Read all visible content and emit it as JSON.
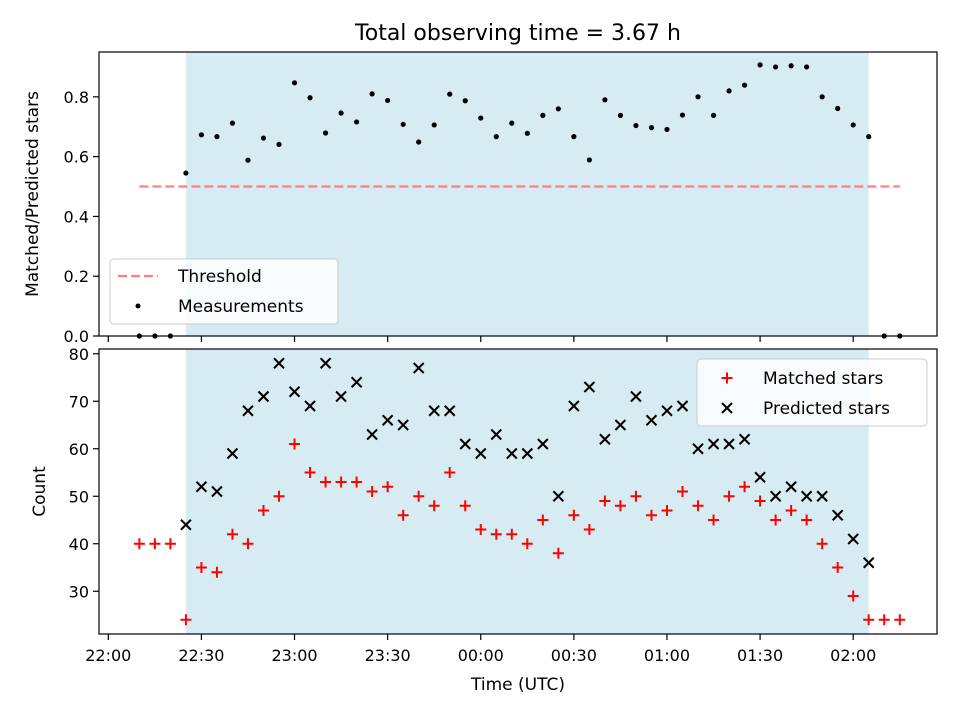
{
  "chart_data": [
    {
      "type": "scatter",
      "title": "Total observing time = 3.67 h",
      "xlabel": "",
      "ylabel": "Matched/Predicted stars",
      "xlim": [
        "21:57",
        "02:27"
      ],
      "ylim": [
        0,
        0.95
      ],
      "yticks": [
        0.0,
        0.2,
        0.4,
        0.6,
        0.8
      ],
      "yticklabels": [
        "0.0",
        "0.2",
        "0.4",
        "0.6",
        "0.8"
      ],
      "observing_window": [
        "22:25",
        "02:05"
      ],
      "threshold": {
        "name": "Threshold",
        "value": 0.5,
        "x_range": [
          "22:10",
          "02:15"
        ],
        "color": "#ff8080"
      },
      "legend_position": "lower-left",
      "series": [
        {
          "name": "Measurements",
          "color": "#000000",
          "x": [
            "22:10",
            "22:15",
            "22:20",
            "22:25",
            "22:30",
            "22:35",
            "22:40",
            "22:45",
            "22:50",
            "22:55",
            "23:00",
            "23:05",
            "23:10",
            "23:15",
            "23:20",
            "23:25",
            "23:30",
            "23:35",
            "23:40",
            "23:45",
            "23:50",
            "23:55",
            "00:00",
            "00:05",
            "00:10",
            "00:15",
            "00:20",
            "00:25",
            "00:30",
            "00:35",
            "00:40",
            "00:45",
            "00:50",
            "00:55",
            "01:00",
            "01:05",
            "01:10",
            "01:15",
            "01:20",
            "01:25",
            "01:30",
            "01:35",
            "01:40",
            "01:45",
            "01:50",
            "01:55",
            "02:00",
            "02:05",
            "02:10",
            "02:15"
          ],
          "y": [
            0,
            0,
            0,
            0.545,
            0.673,
            0.667,
            0.712,
            0.588,
            0.662,
            0.641,
            0.847,
            0.797,
            0.679,
            0.746,
            0.716,
            0.81,
            0.788,
            0.708,
            0.649,
            0.706,
            0.809,
            0.787,
            0.729,
            0.667,
            0.712,
            0.678,
            0.738,
            0.76,
            0.667,
            0.589,
            0.79,
            0.738,
            0.704,
            0.697,
            0.691,
            0.739,
            0.8,
            0.738,
            0.82,
            0.839,
            0.907,
            0.9,
            0.904,
            0.9,
            0.8,
            0.761,
            0.706,
            0.667,
            0,
            0
          ]
        }
      ]
    },
    {
      "type": "scatter",
      "title": "",
      "xlabel": "Time (UTC)",
      "ylabel": "Count",
      "xlim": [
        "21:57",
        "02:27"
      ],
      "ylim": [
        21,
        81
      ],
      "yticks": [
        30,
        40,
        50,
        60,
        70,
        80
      ],
      "xticklabels": [
        "22:00",
        "22:30",
        "23:00",
        "23:30",
        "00:00",
        "00:30",
        "01:00",
        "01:30",
        "02:00"
      ],
      "observing_window": [
        "22:25",
        "02:05"
      ],
      "legend_position": "top-right",
      "series": [
        {
          "name": "Matched stars",
          "marker": "plus",
          "color": "#ff0000",
          "x": [
            "22:10",
            "22:15",
            "22:20",
            "22:25",
            "22:30",
            "22:35",
            "22:40",
            "22:45",
            "22:50",
            "22:55",
            "23:00",
            "23:05",
            "23:10",
            "23:15",
            "23:20",
            "23:25",
            "23:30",
            "23:35",
            "23:40",
            "23:45",
            "23:50",
            "23:55",
            "00:00",
            "00:05",
            "00:10",
            "00:15",
            "00:20",
            "00:25",
            "00:30",
            "00:35",
            "00:40",
            "00:45",
            "00:50",
            "00:55",
            "01:00",
            "01:05",
            "01:10",
            "01:15",
            "01:20",
            "01:25",
            "01:30",
            "01:35",
            "01:40",
            "01:45",
            "01:50",
            "01:55",
            "02:00",
            "02:05",
            "02:10",
            "02:15"
          ],
          "y": [
            40,
            40,
            40,
            24,
            35,
            34,
            42,
            40,
            47,
            50,
            61,
            55,
            53,
            53,
            53,
            51,
            52,
            46,
            50,
            48,
            55,
            48,
            43,
            42,
            42,
            40,
            45,
            38,
            46,
            43,
            49,
            48,
            50,
            46,
            47,
            51,
            48,
            45,
            50,
            52,
            49,
            45,
            47,
            45,
            40,
            35,
            29,
            24,
            24,
            24
          ]
        },
        {
          "name": "Predicted stars",
          "marker": "x",
          "color": "#000000",
          "x": [
            "22:25",
            "22:30",
            "22:35",
            "22:40",
            "22:45",
            "22:50",
            "22:55",
            "23:00",
            "23:05",
            "23:10",
            "23:15",
            "23:20",
            "23:25",
            "23:30",
            "23:35",
            "23:40",
            "23:45",
            "23:50",
            "23:55",
            "00:00",
            "00:05",
            "00:10",
            "00:15",
            "00:20",
            "00:25",
            "00:30",
            "00:35",
            "00:40",
            "00:45",
            "00:50",
            "00:55",
            "01:00",
            "01:05",
            "01:10",
            "01:15",
            "01:20",
            "01:25",
            "01:30",
            "01:35",
            "01:40",
            "01:45",
            "01:50",
            "01:55",
            "02:00",
            "02:05"
          ],
          "y": [
            44,
            52,
            51,
            59,
            68,
            71,
            78,
            72,
            69,
            78,
            71,
            74,
            63,
            66,
            65,
            77,
            68,
            68,
            61,
            59,
            63,
            59,
            59,
            61,
            50,
            69,
            73,
            62,
            65,
            71,
            66,
            68,
            69,
            60,
            61,
            61,
            62,
            54,
            50,
            52,
            50,
            50,
            46,
            41,
            36
          ]
        }
      ]
    }
  ]
}
